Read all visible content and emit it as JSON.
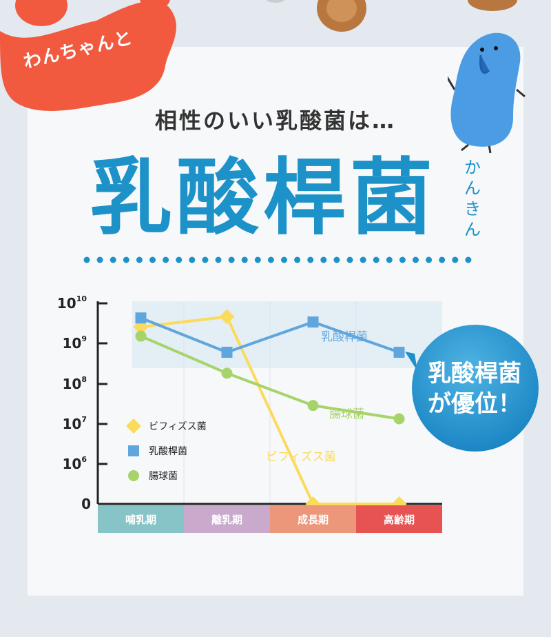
{
  "badge": {
    "text": "わんちゃんと"
  },
  "header": {
    "subtitle": "相性のいい乳酸菌は…",
    "title": "乳酸桿菌",
    "ruby": "かんきん"
  },
  "callout": {
    "line1": "乳酸桿菌",
    "line2": "が優位！"
  },
  "colors": {
    "accent_blue": "#1d92c9",
    "badge_red": "#f25a40",
    "bifido": "#fadb5c",
    "lactobacillus": "#5ea6dd",
    "enterococcus": "#a7d36b"
  },
  "chart_data": {
    "type": "line",
    "categories": [
      "哺乳期",
      "離乳期",
      "成長期",
      "高齢期"
    ],
    "category_colors": [
      "#86c4c7",
      "#c9a9cc",
      "#ec967a",
      "#e75252"
    ],
    "y_scale": "log",
    "y_ticks": [
      {
        "base": "0",
        "exp": ""
      },
      {
        "base": "10",
        "exp": "6"
      },
      {
        "base": "10",
        "exp": "7"
      },
      {
        "base": "10",
        "exp": "8"
      },
      {
        "base": "10",
        "exp": "9"
      },
      {
        "base": "10",
        "exp": "10"
      }
    ],
    "series": [
      {
        "name": "ビフィズス菌",
        "marker": "diamond",
        "color": "#fadb5c",
        "values": [
          9.4,
          9.65,
          0,
          0
        ]
      },
      {
        "name": "乳酸桿菌",
        "marker": "square",
        "color": "#5ea6dd",
        "values": [
          9.62,
          8.77,
          9.52,
          8.77
        ]
      },
      {
        "name": "腸球菌",
        "marker": "circle",
        "color": "#a7d36b",
        "values": [
          9.17,
          8.25,
          7.45,
          7.12
        ]
      }
    ],
    "inline_labels": [
      "乳酸桿菌",
      "腸球菌",
      "ビフィズス菌"
    ],
    "legend": "bottom-left"
  }
}
